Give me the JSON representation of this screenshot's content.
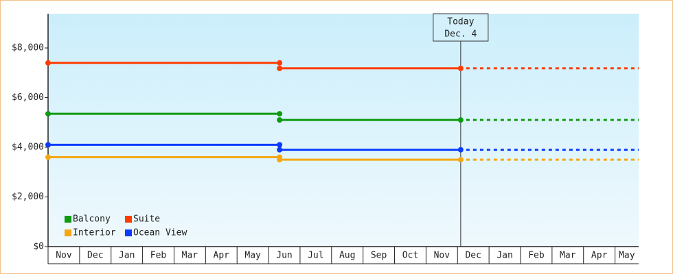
{
  "chart_data": {
    "type": "step-line",
    "categories": [
      "Nov",
      "Dec",
      "Jan",
      "Feb",
      "Mar",
      "Apr",
      "May",
      "Jun",
      "Jul",
      "Aug",
      "Sep",
      "Oct",
      "Nov",
      "Dec",
      "Jan",
      "Feb",
      "Mar",
      "Apr",
      "May"
    ],
    "x": [
      0,
      7.35,
      7.35,
      13.1
    ],
    "xlim": [
      0,
      18.75
    ],
    "series": [
      {
        "name": "Balcony",
        "color": "#0f9a10",
        "values": [
          5350,
          5350,
          5100,
          5100
        ]
      },
      {
        "name": "Suite",
        "color": "#ff3c00",
        "values": [
          7400,
          7400,
          7180,
          7180
        ]
      },
      {
        "name": "Interior",
        "color": "#f5a713",
        "values": [
          3600,
          3600,
          3500,
          3500
        ]
      },
      {
        "name": "Ocean View",
        "color": "#0a3cff",
        "values": [
          4100,
          4100,
          3900,
          3900
        ]
      }
    ],
    "ylim": [
      0,
      9380
    ],
    "yticks": [
      {
        "value": 0,
        "label": "$0"
      },
      {
        "value": 2000,
        "label": "$2,000"
      },
      {
        "value": 4000,
        "label": "$4,000"
      },
      {
        "value": 6000,
        "label": "$6,000"
      },
      {
        "value": 8000,
        "label": "$8,000"
      }
    ],
    "today": {
      "x": 13.1,
      "label": [
        "Today",
        "Dec. 4"
      ]
    },
    "forecast_dashed": true
  }
}
